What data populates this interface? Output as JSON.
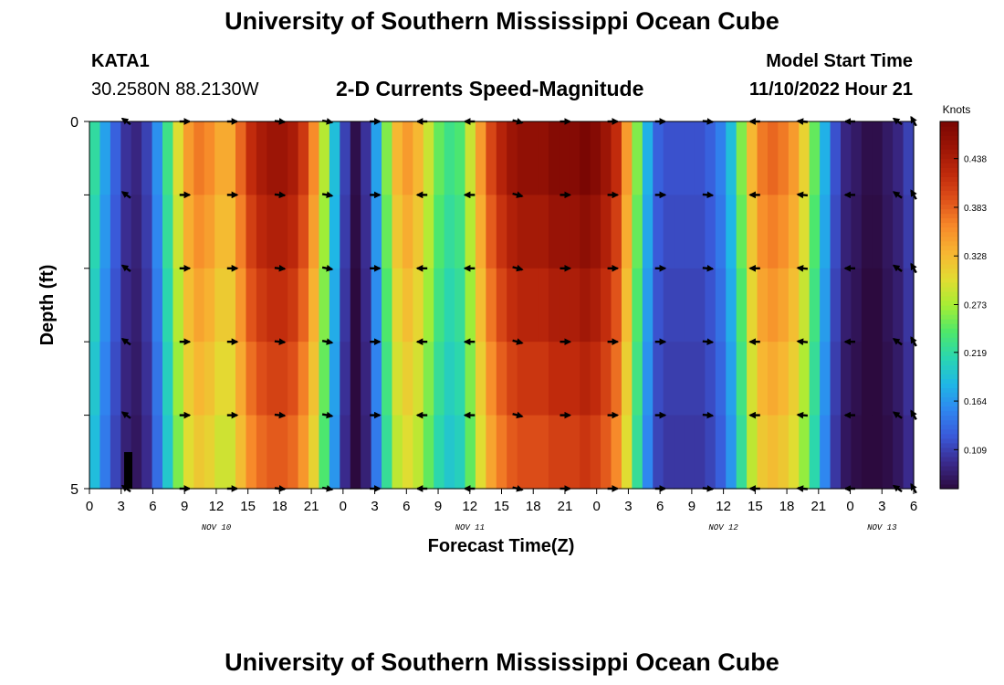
{
  "page": {
    "title": "University of Southern Mississippi Ocean Cube",
    "station_name": "KATA1",
    "station_coords": "30.2580N  88.2130W",
    "plot_title": "2-D Currents Speed-Magnitude",
    "model_start_label": "Model Start Time",
    "model_start_value": "11/10/2022 Hour 21",
    "bottom_title": "University of Southern Mississippi Ocean Cube"
  },
  "chart_data": {
    "type": "heatmap",
    "title": "2-D Currents Speed-Magnitude",
    "xlabel": "Forecast Time(Z)",
    "ylabel": "Depth (ft)",
    "y_ticks": [
      "0",
      "5"
    ],
    "ylim": [
      0,
      5
    ],
    "x_ticks": [
      "0",
      "3",
      "6",
      "9",
      "12",
      "15",
      "18",
      "21",
      "0",
      "3",
      "6",
      "9",
      "12",
      "15",
      "18",
      "21",
      "0",
      "3",
      "6",
      "9",
      "12",
      "15",
      "18",
      "21",
      "0",
      "3",
      "6"
    ],
    "x_tick_hours": [
      0,
      3,
      6,
      9,
      12,
      15,
      18,
      21,
      24,
      27,
      30,
      33,
      36,
      39,
      42,
      45,
      48,
      51,
      54,
      57,
      60,
      63,
      66,
      69,
      72,
      75,
      78
    ],
    "date_labels": [
      {
        "label": "NOV 10",
        "hour": 12
      },
      {
        "label": "NOV 11",
        "hour": 36
      },
      {
        "label": "NOV 12",
        "hour": 60
      },
      {
        "label": "NOV 13",
        "hour": 75
      }
    ],
    "colorbar": {
      "unit": "Knots",
      "ticks": [
        "0.438",
        "0.383",
        "0.328",
        "0.273",
        "0.219",
        "0.164",
        "0.109"
      ],
      "tick_values": [
        0.438,
        0.383,
        0.328,
        0.273,
        0.219,
        0.164,
        0.109
      ],
      "range": [
        0.065,
        0.48
      ],
      "colors": [
        "#2c0a3e",
        "#3a2a8c",
        "#3a58d8",
        "#2f86f0",
        "#1fb7e6",
        "#2ad6b0",
        "#4ee86a",
        "#a6ee34",
        "#e2dc32",
        "#f7b632",
        "#f78a2a",
        "#e0521a",
        "#c02a0c",
        "#9c1506",
        "#7a0603"
      ]
    },
    "hours": [
      0,
      1,
      2,
      3,
      4,
      5,
      6,
      7,
      8,
      9,
      10,
      11,
      12,
      13,
      14,
      15,
      16,
      17,
      18,
      19,
      20,
      21,
      22,
      23,
      24,
      25,
      26,
      27,
      28,
      29,
      30,
      31,
      32,
      33,
      34,
      35,
      36,
      37,
      38,
      39,
      40,
      41,
      42,
      43,
      44,
      45,
      46,
      47,
      48,
      49,
      50,
      51,
      52,
      53,
      54,
      55,
      56,
      57,
      58,
      59,
      60,
      61,
      62,
      63,
      64,
      65,
      66,
      67,
      68,
      69,
      70,
      71,
      72,
      73,
      74,
      75,
      76,
      77,
      78
    ],
    "speeds_knots": [
      0.22,
      0.17,
      0.13,
      0.1,
      0.09,
      0.11,
      0.16,
      0.23,
      0.3,
      0.35,
      0.37,
      0.36,
      0.34,
      0.34,
      0.38,
      0.42,
      0.44,
      0.45,
      0.45,
      0.44,
      0.41,
      0.36,
      0.28,
      0.19,
      0.11,
      0.07,
      0.1,
      0.17,
      0.26,
      0.33,
      0.35,
      0.33,
      0.29,
      0.25,
      0.23,
      0.24,
      0.29,
      0.35,
      0.4,
      0.43,
      0.45,
      0.46,
      0.46,
      0.46,
      0.47,
      0.47,
      0.47,
      0.48,
      0.47,
      0.45,
      0.42,
      0.35,
      0.26,
      0.18,
      0.13,
      0.12,
      0.12,
      0.12,
      0.12,
      0.13,
      0.15,
      0.19,
      0.26,
      0.33,
      0.37,
      0.38,
      0.37,
      0.35,
      0.31,
      0.25,
      0.18,
      0.12,
      0.09,
      0.08,
      0.07,
      0.07,
      0.08,
      0.09,
      0.11
    ],
    "arrow_hours": [
      3.5,
      9,
      13.5,
      18,
      22.5,
      27,
      31.5,
      36,
      40.5,
      45,
      49.5,
      54,
      58.5,
      63,
      67.5,
      72,
      76.5,
      78
    ],
    "arrow_depth_levels_ft": [
      0,
      1,
      2,
      3,
      4,
      5
    ],
    "arrow_angles_deg": [
      215,
      0,
      0,
      5,
      10,
      0,
      180,
      180,
      15,
      0,
      0,
      0,
      5,
      180,
      185,
      180,
      215,
      240
    ]
  }
}
